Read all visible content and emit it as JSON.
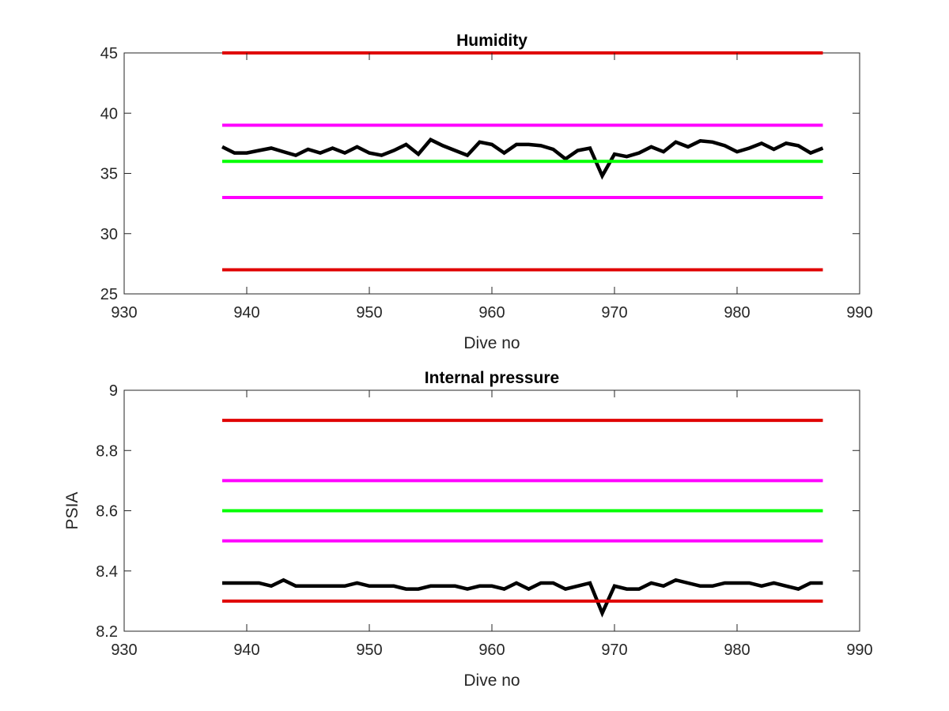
{
  "chart_data": [
    {
      "type": "line",
      "title": "Humidity",
      "xlabel": "Dive no",
      "ylabel": "",
      "xlim": [
        930,
        990
      ],
      "ylim": [
        25,
        45
      ],
      "xticks": [
        "930",
        "940",
        "950",
        "960",
        "970",
        "980",
        "990"
      ],
      "yticks": [
        "25",
        "30",
        "35",
        "40",
        "45"
      ],
      "grid": false,
      "series": [
        {
          "color": "#000000",
          "x": [
            938,
            939,
            940,
            941,
            942,
            943,
            944,
            945,
            946,
            947,
            948,
            949,
            950,
            951,
            952,
            953,
            954,
            955,
            956,
            957,
            958,
            959,
            960,
            961,
            962,
            963,
            964,
            965,
            966,
            967,
            968,
            969,
            970,
            971,
            972,
            973,
            974,
            975,
            976,
            977,
            978,
            979,
            980,
            981,
            982,
            983,
            984,
            985,
            986,
            987
          ],
          "y": [
            37.2,
            36.7,
            36.7,
            36.9,
            37.1,
            36.8,
            36.5,
            37.0,
            36.7,
            37.1,
            36.7,
            37.2,
            36.7,
            36.5,
            36.9,
            37.4,
            36.6,
            37.8,
            37.3,
            36.9,
            36.5,
            37.6,
            37.4,
            36.7,
            37.4,
            37.4,
            37.3,
            37.0,
            36.2,
            36.9,
            37.1,
            34.8,
            36.6,
            36.4,
            36.7,
            37.2,
            36.8,
            37.6,
            37.2,
            37.7,
            37.6,
            37.3,
            36.8,
            37.1,
            37.5,
            37.0,
            37.5,
            37.3,
            36.7,
            37.1
          ]
        },
        {
          "color": "#e00000",
          "x": [
            938,
            987
          ],
          "y": [
            45,
            45
          ]
        },
        {
          "color": "#ff00ff",
          "x": [
            938,
            987
          ],
          "y": [
            39,
            39
          ]
        },
        {
          "color": "#00ff00",
          "x": [
            938,
            987
          ],
          "y": [
            36,
            36
          ]
        },
        {
          "color": "#ff00ff",
          "x": [
            938,
            987
          ],
          "y": [
            33,
            33
          ]
        },
        {
          "color": "#e00000",
          "x": [
            938,
            987
          ],
          "y": [
            27,
            27
          ]
        }
      ]
    },
    {
      "type": "line",
      "title": "Internal pressure",
      "xlabel": "Dive no",
      "ylabel": "PSIA",
      "xlim": [
        930,
        990
      ],
      "ylim": [
        8.2,
        9
      ],
      "xticks": [
        "930",
        "940",
        "950",
        "960",
        "970",
        "980",
        "990"
      ],
      "yticks": [
        "8.2",
        "8.4",
        "8.6",
        "8.8",
        "9"
      ],
      "grid": false,
      "series": [
        {
          "color": "#000000",
          "x": [
            938,
            939,
            940,
            941,
            942,
            943,
            944,
            945,
            946,
            947,
            948,
            949,
            950,
            951,
            952,
            953,
            954,
            955,
            956,
            957,
            958,
            959,
            960,
            961,
            962,
            963,
            964,
            965,
            966,
            967,
            968,
            969,
            970,
            971,
            972,
            973,
            974,
            975,
            976,
            977,
            978,
            979,
            980,
            981,
            982,
            983,
            984,
            985,
            986,
            987
          ],
          "y": [
            8.36,
            8.36,
            8.36,
            8.36,
            8.35,
            8.37,
            8.35,
            8.35,
            8.35,
            8.35,
            8.35,
            8.36,
            8.35,
            8.35,
            8.35,
            8.34,
            8.34,
            8.35,
            8.35,
            8.35,
            8.34,
            8.35,
            8.35,
            8.34,
            8.36,
            8.34,
            8.36,
            8.36,
            8.34,
            8.35,
            8.36,
            8.26,
            8.35,
            8.34,
            8.34,
            8.36,
            8.35,
            8.37,
            8.36,
            8.35,
            8.35,
            8.36,
            8.36,
            8.36,
            8.35,
            8.36,
            8.35,
            8.34,
            8.36,
            8.36
          ]
        },
        {
          "color": "#e00000",
          "x": [
            938,
            987
          ],
          "y": [
            8.9,
            8.9
          ]
        },
        {
          "color": "#ff00ff",
          "x": [
            938,
            987
          ],
          "y": [
            8.7,
            8.7
          ]
        },
        {
          "color": "#00ff00",
          "x": [
            938,
            987
          ],
          "y": [
            8.6,
            8.6
          ]
        },
        {
          "color": "#ff00ff",
          "x": [
            938,
            987
          ],
          "y": [
            8.5,
            8.5
          ]
        },
        {
          "color": "#e00000",
          "x": [
            938,
            987
          ],
          "y": [
            8.3,
            8.3
          ]
        }
      ]
    }
  ]
}
